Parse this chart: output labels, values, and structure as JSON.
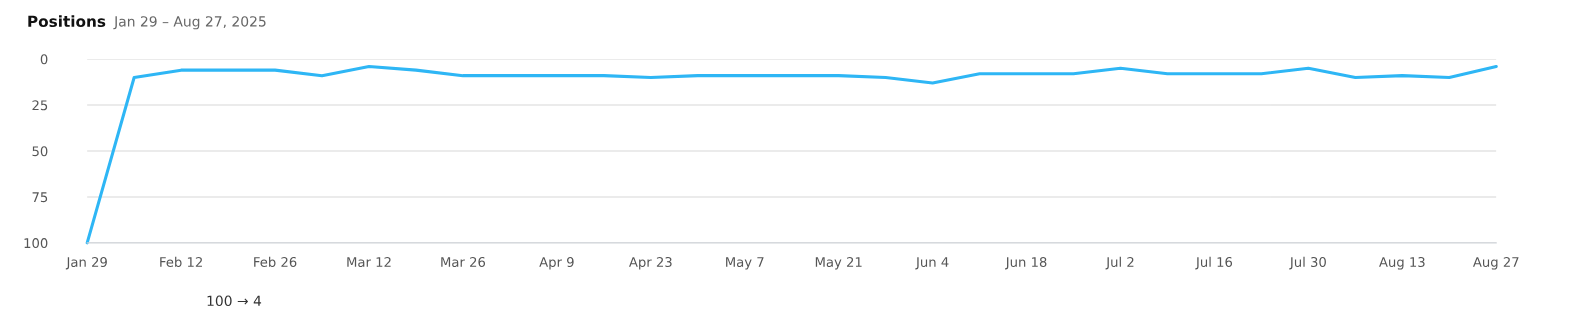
{
  "chart_data": {
    "type": "line",
    "title": "Positions",
    "subtitle": "Jan 29 – Aug 27, 2025",
    "x": [
      "2025-01-29",
      "2025-02-05",
      "2025-02-12",
      "2025-02-19",
      "2025-02-26",
      "2025-03-05",
      "2025-03-12",
      "2025-03-19",
      "2025-03-26",
      "2025-04-02",
      "2025-04-09",
      "2025-04-16",
      "2025-04-23",
      "2025-04-30",
      "2025-05-07",
      "2025-05-14",
      "2025-05-21",
      "2025-05-28",
      "2025-06-04",
      "2025-06-11",
      "2025-06-18",
      "2025-06-25",
      "2025-07-02",
      "2025-07-09",
      "2025-07-16",
      "2025-07-23",
      "2025-07-30",
      "2025-08-06",
      "2025-08-13",
      "2025-08-20",
      "2025-08-27"
    ],
    "series": [
      {
        "color": "#2eb6f5",
        "values": [
          100,
          10,
          6,
          6,
          6,
          9,
          4,
          6,
          9,
          9,
          9,
          9,
          10,
          9,
          9,
          9,
          9,
          10,
          13,
          8,
          8,
          8,
          5,
          8,
          8,
          8,
          5,
          10,
          9,
          10,
          4
        ]
      }
    ],
    "ylim": [
      100,
      0
    ],
    "yticks": [
      0,
      25,
      50,
      75,
      100
    ],
    "xlim": [
      "2025-01-29",
      "2025-08-27"
    ],
    "xticks": [
      {
        "value": "2025-01-29",
        "label": "Jan 29"
      },
      {
        "value": "2025-02-12",
        "label": "Feb 12"
      },
      {
        "value": "2025-02-26",
        "label": "Feb 26"
      },
      {
        "value": "2025-03-12",
        "label": "Mar 12"
      },
      {
        "value": "2025-03-26",
        "label": "Mar 26"
      },
      {
        "value": "2025-04-09",
        "label": "Apr 9"
      },
      {
        "value": "2025-04-23",
        "label": "Apr 23"
      },
      {
        "value": "2025-05-07",
        "label": "May 7"
      },
      {
        "value": "2025-05-21",
        "label": "May 21"
      },
      {
        "value": "2025-06-04",
        "label": "Jun 4"
      },
      {
        "value": "2025-06-18",
        "label": "Jun 18"
      },
      {
        "value": "2025-07-02",
        "label": "Jul 2"
      },
      {
        "value": "2025-07-16",
        "label": "Jul 16"
      },
      {
        "value": "2025-07-30",
        "label": "Jul 30"
      },
      {
        "value": "2025-08-13",
        "label": "Aug 13"
      },
      {
        "value": "2025-08-27",
        "label": "Aug 27"
      }
    ],
    "grid": "y",
    "line_style": "solid",
    "annotations": [
      "100 → 4"
    ]
  }
}
